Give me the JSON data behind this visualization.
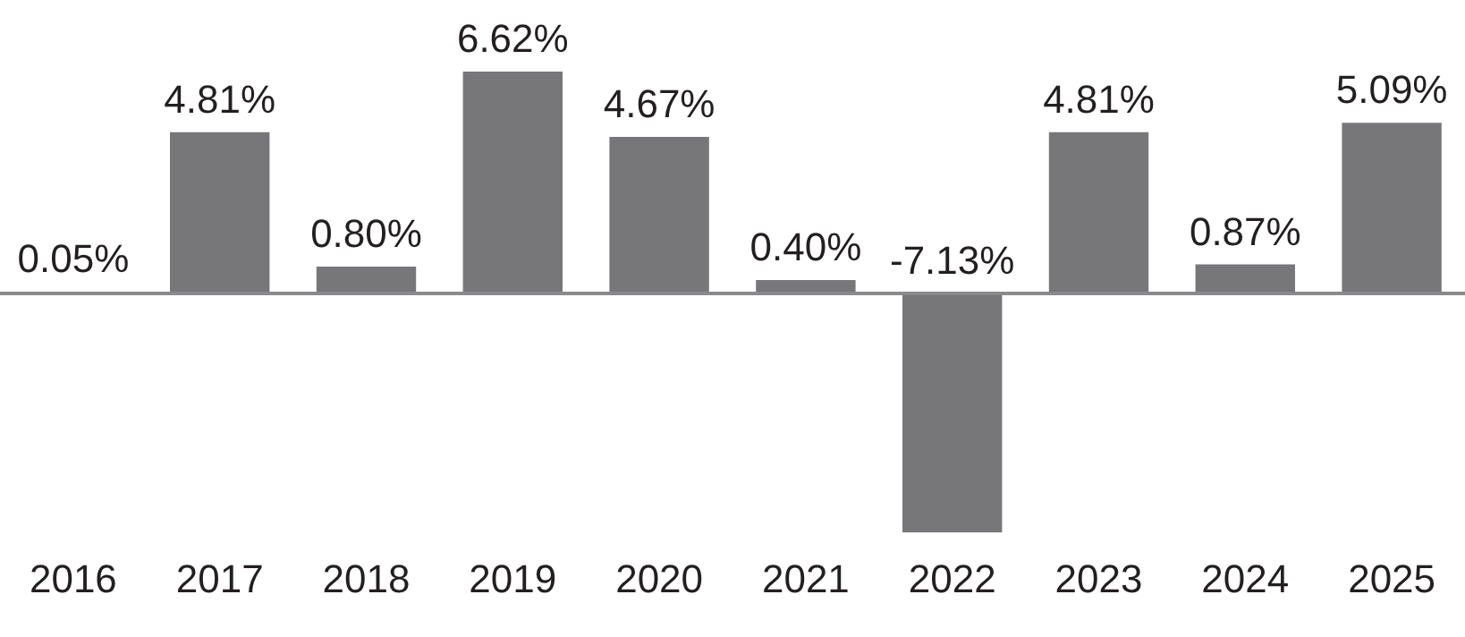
{
  "chart_data": {
    "type": "bar",
    "categories": [
      "2016",
      "2017",
      "2018",
      "2019",
      "2020",
      "2021",
      "2022",
      "2023",
      "2024",
      "2025"
    ],
    "values": [
      0.05,
      4.81,
      0.8,
      6.62,
      4.67,
      0.4,
      -7.13,
      4.81,
      0.87,
      5.09
    ],
    "value_labels": [
      "0.05%",
      "4.81%",
      "0.80%",
      "6.62%",
      "4.67%",
      "0.40%",
      "-7.13%",
      "4.81%",
      "0.87%",
      "5.09%"
    ],
    "color": "#77777a",
    "grid": false,
    "legend": false
  }
}
